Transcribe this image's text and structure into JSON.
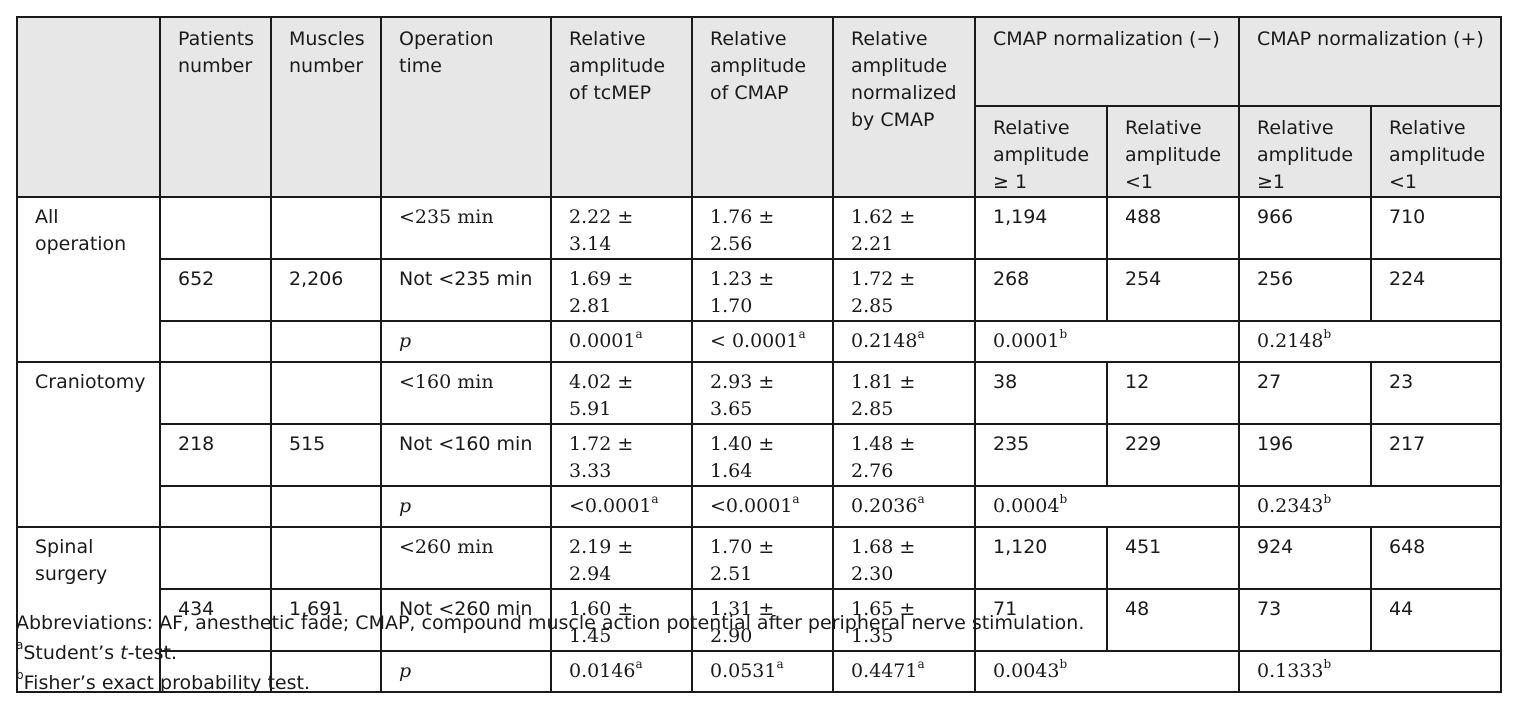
{
  "table": {
    "header": {
      "blank": "",
      "patients": "Patients number",
      "muscles": "Muscles number",
      "operation_time": "Operation time",
      "rel_tcmep": "Relative amplitude of tcMEP",
      "rel_cmap": "Relative amplitude of CMAP",
      "rel_norm": "Relative amplitude normalized by CMAP",
      "cmap_minus": "CMAP normalization (−)",
      "cmap_plus": "CMAP normalization (+)",
      "sub_ge1_a": "Relative amplitude ≥ 1",
      "sub_lt1_a": "Relative amplitude <1",
      "sub_ge1_b": "Relative amplitude ≥1",
      "sub_lt1_b": "Relative amplitude <1"
    },
    "groups": [
      {
        "name": "All operation",
        "rows": [
          {
            "patients": "",
            "muscles": "",
            "time": "<235 min",
            "tcmep": "2.22 ± 3.14",
            "cmap": "1.76 ± 2.56",
            "norm": "1.62 ± 2.21",
            "minus_ge": "1,194",
            "minus_lt": "488",
            "plus_ge": "966",
            "plus_lt": "710"
          },
          {
            "patients": "652",
            "muscles": "2,206",
            "time": "Not <235 min",
            "tcmep": "1.69 ± 2.81",
            "cmap": "1.23 ± 1.70",
            "norm": "1.72 ± 2.85",
            "minus_ge": "268",
            "minus_lt": "254",
            "plus_ge": "256",
            "plus_lt": "224"
          }
        ],
        "p": {
          "label": "p",
          "tcmep": "0.0001",
          "tcmep_sup": "a",
          "cmap": "< 0.0001",
          "cmap_sup": "a",
          "norm": "0.2148",
          "norm_sup": "a",
          "minus": "0.0001",
          "minus_sup": "b",
          "plus": "0.2148",
          "plus_sup": "b"
        }
      },
      {
        "name": "Craniotomy",
        "rows": [
          {
            "patients": "",
            "muscles": "",
            "time": "<160 min",
            "tcmep": "4.02 ± 5.91",
            "cmap": "2.93 ± 3.65",
            "norm": "1.81 ± 2.85",
            "minus_ge": "38",
            "minus_lt": "12",
            "plus_ge": "27",
            "plus_lt": "23"
          },
          {
            "patients": "218",
            "muscles": "515",
            "time": "Not <160 min",
            "tcmep": "1.72 ± 3.33",
            "cmap": "1.40 ± 1.64",
            "norm": "1.48 ± 2.76",
            "minus_ge": "235",
            "minus_lt": "229",
            "plus_ge": "196",
            "plus_lt": "217"
          }
        ],
        "p": {
          "label": "p",
          "tcmep": "<0.0001",
          "tcmep_sup": "a",
          "cmap": "<0.0001",
          "cmap_sup": "a",
          "norm": "0.2036",
          "norm_sup": "a",
          "minus": "0.0004",
          "minus_sup": "b",
          "plus": "0.2343",
          "plus_sup": "b"
        }
      },
      {
        "name": "Spinal surgery",
        "rows": [
          {
            "patients": "",
            "muscles": "",
            "time": "<260 min",
            "tcmep": "2.19 ± 2.94",
            "cmap": "1.70 ± 2.51",
            "norm": "1.68 ± 2.30",
            "minus_ge": "1,120",
            "minus_lt": "451",
            "plus_ge": "924",
            "plus_lt": "648"
          },
          {
            "patients": "434",
            "muscles": "1,691",
            "time": "Not <260 min",
            "tcmep": "1.60 ± 1.45",
            "cmap": "1.31 ± 2.90",
            "norm": "1.65 ± 1.35",
            "minus_ge": "71",
            "minus_lt": "48",
            "plus_ge": "73",
            "plus_lt": "44"
          }
        ],
        "p": {
          "label": "p",
          "tcmep": "0.0146",
          "tcmep_sup": "a",
          "cmap": "0.0531",
          "cmap_sup": "a",
          "norm": "0.4471",
          "norm_sup": "a",
          "minus": "0.0043",
          "minus_sup": "b",
          "plus": "0.1333",
          "plus_sup": "b"
        }
      }
    ]
  },
  "footnotes": {
    "abbreviations": "Abbreviations: AF, anesthetic fade; CMAP, compound muscle action potential after peripheral nerve stimulation.",
    "a_marker": "a",
    "a_pre": "Student’s ",
    "a_ital": "t",
    "a_post": "-test.",
    "b_marker": "b",
    "b_text": "Fisher’s exact probability test."
  },
  "colors": {
    "header_bg": "#e7e7e7",
    "border": "#1a1a1a",
    "text": "#1a1a1a"
  }
}
